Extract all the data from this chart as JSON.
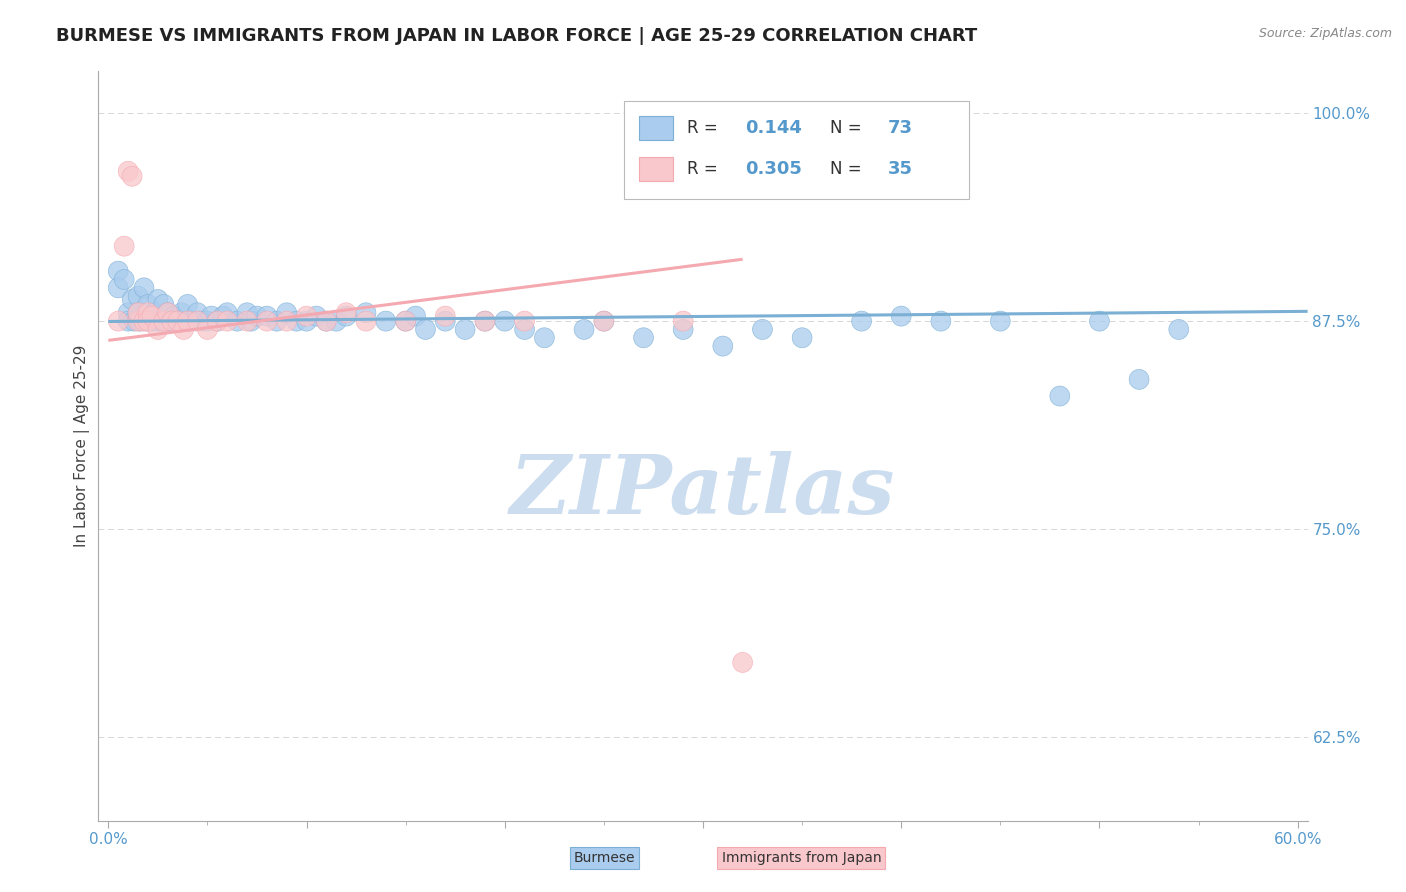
{
  "title": "BURMESE VS IMMIGRANTS FROM JAPAN IN LABOR FORCE | AGE 25-29 CORRELATION CHART",
  "source_text": "Source: ZipAtlas.com",
  "ylabel": "In Labor Force | Age 25-29",
  "xlim": [
    -0.005,
    0.605
  ],
  "ylim": [
    0.575,
    1.025
  ],
  "ytick_positions": [
    0.625,
    0.75,
    0.875,
    1.0
  ],
  "ytick_labels": [
    "62.5%",
    "75.0%",
    "87.5%",
    "100.0%"
  ],
  "xtick_positions": [
    0.0,
    0.1,
    0.2,
    0.3,
    0.4,
    0.5,
    0.6
  ],
  "xtick_labels": [
    "0.0%",
    "",
    "",
    "",
    "",
    "",
    "60.0%"
  ],
  "watermark": "ZIPatlas",
  "watermark_color": "#ccddef",
  "blue_color": "#7bafd4",
  "pink_color": "#f4a8b0",
  "blue_fill": "#aaccee",
  "pink_fill": "#f9c8cc",
  "blue_R": 0.144,
  "blue_N": 73,
  "pink_R": 0.305,
  "pink_N": 35,
  "grid_color": "#cccccc",
  "background_color": "#ffffff",
  "title_fontsize": 13,
  "axis_label_fontsize": 11,
  "tick_fontsize": 11,
  "tick_color": "#5599cc",
  "title_color": "#222222",
  "source_color": "#888888",
  "ylabel_color": "#444444"
}
